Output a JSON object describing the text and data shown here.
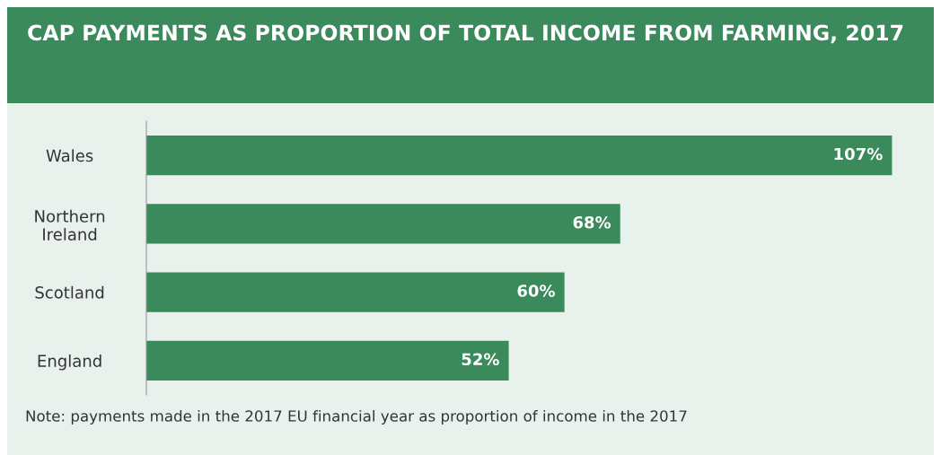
{
  "chart_data": {
    "type": "bar",
    "orientation": "horizontal",
    "title": "CAP PAYMENTS AS PROPORTION OF TOTAL INCOME FROM FARMING, 2017",
    "categories": [
      "Wales",
      "Northern\nIreland",
      "Scotland",
      "England"
    ],
    "values": [
      107,
      68,
      60,
      52
    ],
    "value_labels": [
      "107%",
      "68%",
      "60%",
      "52%"
    ],
    "color": "#3a8a5c",
    "xlim": [
      0,
      113
    ],
    "tick_labels": "y",
    "grid": false,
    "legend": false,
    "annotations": [
      "Note: payments made in the 2017 EU financial year as proportion of income in the 2017"
    ]
  }
}
